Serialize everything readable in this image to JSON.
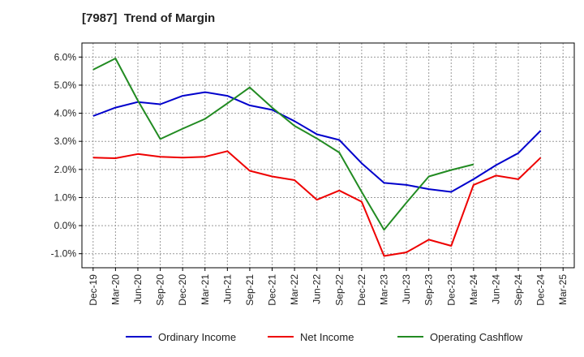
{
  "chart_data": {
    "type": "line",
    "title": "[7987]  Trend of Margin",
    "xlabel": "",
    "ylabel": "",
    "categories": [
      "Dec-19",
      "Mar-20",
      "Jun-20",
      "Sep-20",
      "Dec-20",
      "Mar-21",
      "Jun-21",
      "Sep-21",
      "Dec-21",
      "Mar-22",
      "Jun-22",
      "Sep-22",
      "Dec-22",
      "Mar-23",
      "Jun-23",
      "Sep-23",
      "Dec-23",
      "Mar-24",
      "Jun-24",
      "Sep-24",
      "Dec-24",
      "Mar-25"
    ],
    "ylim": [
      -1.5,
      6.5
    ],
    "yticks": [
      -1.0,
      0.0,
      1.0,
      2.0,
      3.0,
      4.0,
      5.0,
      6.0
    ],
    "ytick_labels": [
      "-1.0%",
      "0.0%",
      "1.0%",
      "2.0%",
      "3.0%",
      "4.0%",
      "5.0%",
      "6.0%"
    ],
    "grid": true,
    "legend_position": "bottom",
    "series": [
      {
        "name": "Ordinary Income",
        "color": "#0000cc",
        "values": [
          3.9,
          4.2,
          4.4,
          4.32,
          4.62,
          4.75,
          4.62,
          4.28,
          4.12,
          3.72,
          3.25,
          3.05,
          2.22,
          1.52,
          1.45,
          1.3,
          1.2,
          1.65,
          2.15,
          2.58,
          3.38,
          null
        ]
      },
      {
        "name": "Net Income",
        "color": "#ee0000",
        "values": [
          2.42,
          2.4,
          2.55,
          2.45,
          2.42,
          2.45,
          2.65,
          1.95,
          1.75,
          1.62,
          0.92,
          1.25,
          0.85,
          -1.08,
          -0.95,
          -0.5,
          -0.72,
          1.45,
          1.78,
          1.65,
          2.42,
          null
        ]
      },
      {
        "name": "Operating Cashflow",
        "color": "#228b22",
        "values": [
          5.55,
          5.95,
          4.45,
          3.08,
          3.45,
          3.8,
          4.35,
          4.92,
          4.2,
          3.55,
          3.1,
          2.6,
          1.2,
          -0.15,
          0.82,
          1.75,
          1.98,
          2.18,
          null,
          null,
          null,
          null
        ]
      }
    ]
  }
}
